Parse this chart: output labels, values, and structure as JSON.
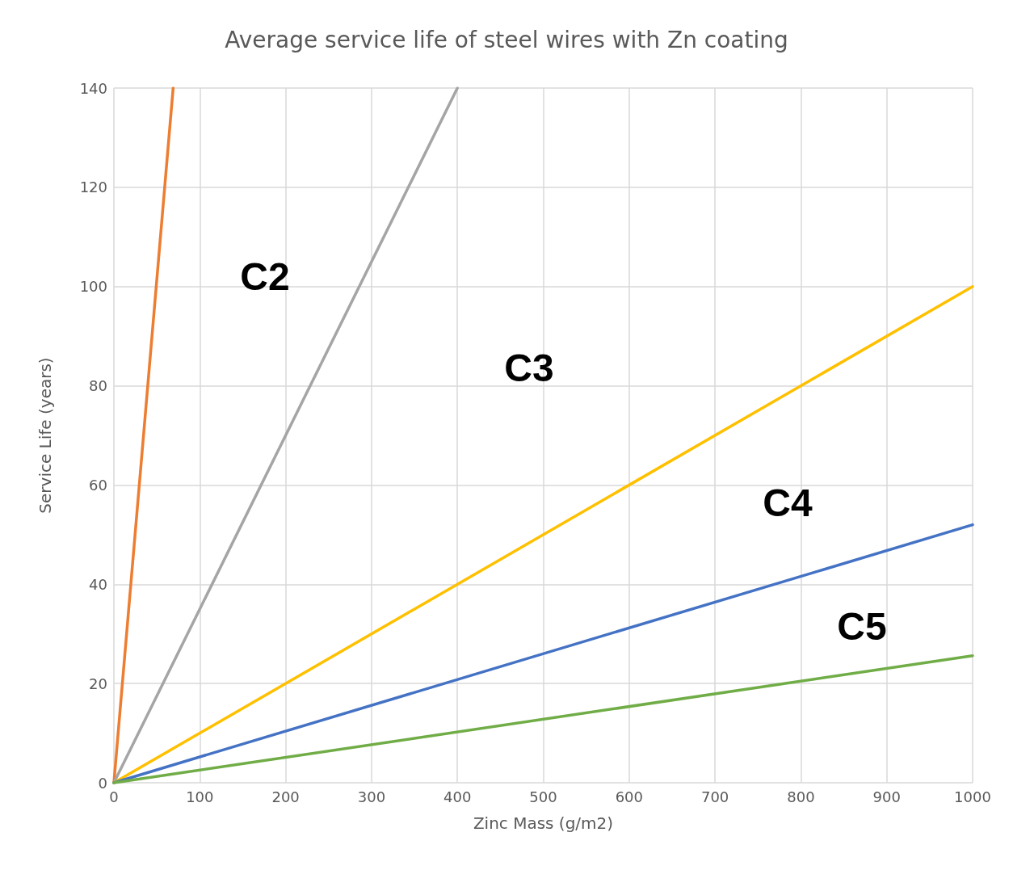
{
  "chart_data": {
    "type": "line",
    "title": "Average service life of steel wires with Zn coating",
    "xlabel": "Zinc Mass (g/m2)",
    "ylabel": "Service Life (years)",
    "xlim": [
      0,
      1000
    ],
    "xticks": [
      0,
      100,
      200,
      300,
      400,
      500,
      600,
      700,
      800,
      900,
      1000
    ],
    "ylim": [
      0,
      140
    ],
    "yticks": [
      0,
      20,
      40,
      60,
      80,
      100,
      120,
      140
    ],
    "grid": true,
    "marker": "none",
    "line_style": "solid",
    "series": [
      {
        "color": "#ed7d31",
        "x": [
          0,
          69
        ],
        "values": [
          0,
          140
        ]
      },
      {
        "color": "#a5a5a5",
        "x": [
          0,
          400
        ],
        "values": [
          0,
          140
        ]
      },
      {
        "color": "#ffc000",
        "x": [
          0,
          1000
        ],
        "values": [
          0,
          100
        ]
      },
      {
        "color": "#4472c4",
        "x": [
          0,
          1000
        ],
        "values": [
          0,
          52
        ]
      },
      {
        "color": "#70ad47",
        "x": [
          0,
          1000
        ],
        "values": [
          0,
          25.6
        ]
      }
    ],
    "annotations": [
      "C2",
      "C3",
      "C4",
      "C5"
    ]
  }
}
